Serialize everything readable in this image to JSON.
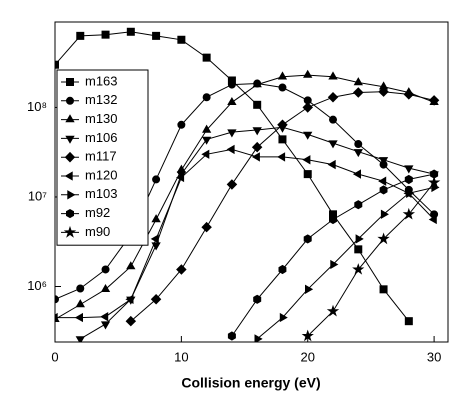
{
  "chart_data": {
    "type": "line",
    "x_label": "Collision energy (eV)",
    "x": [
      0,
      2,
      4,
      6,
      8,
      10,
      12,
      14,
      16,
      18,
      20,
      22,
      24,
      26,
      28,
      30
    ],
    "xlim": [
      0,
      31.1
    ],
    "xticks": [
      0,
      10,
      20,
      30
    ],
    "ylim": [
      240000,
      900000000
    ],
    "yscale": "log",
    "yticks": [
      {
        "value": 1000000,
        "label": "10⁶"
      },
      {
        "value": 10000000,
        "label": "10⁷"
      },
      {
        "value": 100000000,
        "label": "10⁸"
      }
    ],
    "legend": "upper left",
    "series": [
      {
        "name": "m163",
        "color": "#000000",
        "marker": "square",
        "values": [
          300000000,
          630000000,
          650000000,
          700000000,
          630000000,
          570000000,
          360000000,
          200000000,
          107000000,
          44000000,
          18000000,
          6400000,
          2600000,
          930000,
          410000,
          null
        ]
      },
      {
        "name": "m132",
        "color": "#000000",
        "marker": "circle",
        "values": [
          720000,
          950000,
          1550000,
          3800000,
          15700000,
          64000000,
          130000000,
          180000000,
          185000000,
          167000000,
          120000000,
          73000000,
          39000000,
          23000000,
          12000000,
          6400000
        ]
      },
      {
        "name": "m130",
        "color": "#000000",
        "marker": "triangle-up",
        "values": [
          430000,
          630000,
          930000,
          1670000,
          5600000,
          20000000,
          56000000,
          114000000,
          180000000,
          220000000,
          230000000,
          220000000,
          190000000,
          170000000,
          147000000,
          114000000
        ]
      },
      {
        "name": "m106",
        "color": "#000000",
        "marker": "triangle-down",
        "values": [
          null,
          260000,
          380000,
          720000,
          2900000,
          18000000,
          44000000,
          53000000,
          56000000,
          60000000,
          50000000,
          40000000,
          32000000,
          26000000,
          21000000,
          18000000
        ]
      },
      {
        "name": "m117",
        "color": "#000000",
        "marker": "diamond",
        "values": [
          null,
          null,
          null,
          410000,
          720000,
          1550000,
          4600000,
          13800000,
          36000000,
          64000000,
          100000000,
          130000000,
          147000000,
          150000000,
          140000000,
          120000000
        ]
      },
      {
        "name": "m120",
        "color": "#000000",
        "marker": "triangle-left",
        "values": [
          450000,
          450000,
          460000,
          720000,
          3400000,
          16500000,
          30000000,
          34000000,
          28000000,
          28000000,
          26000000,
          23000000,
          18000000,
          15000000,
          11000000,
          5600000
        ]
      },
      {
        "name": "m103",
        "color": "#000000",
        "marker": "triangle-right",
        "values": [
          null,
          null,
          null,
          null,
          null,
          null,
          null,
          null,
          260000,
          450000,
          930000,
          1760000,
          3400000,
          6400000,
          11000000,
          12800000
        ]
      },
      {
        "name": "m92",
        "color": "#000000",
        "marker": "hexagon",
        "values": [
          null,
          null,
          null,
          null,
          null,
          null,
          null,
          280000,
          720000,
          1550000,
          3400000,
          5600000,
          8200000,
          12000000,
          15700000,
          18000000
        ]
      },
      {
        "name": "m90",
        "color": "#000000",
        "marker": "star",
        "values": [
          null,
          null,
          null,
          null,
          null,
          null,
          null,
          null,
          null,
          null,
          280000,
          530000,
          1550000,
          3400000,
          6400000,
          14500000
        ]
      }
    ]
  }
}
